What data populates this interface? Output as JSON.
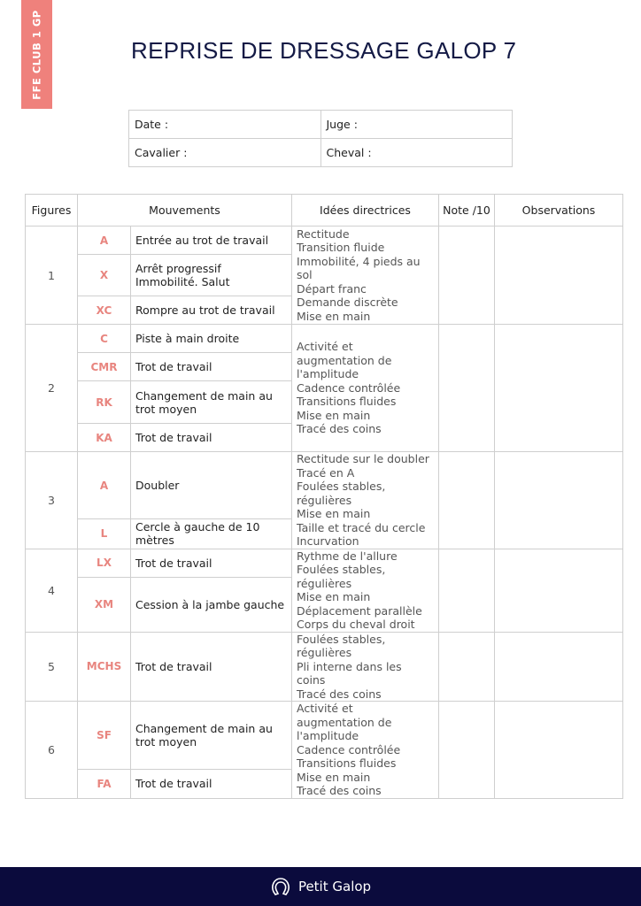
{
  "badge": "FFE CLUB 1 GP",
  "title": "REPRISE DE DRESSAGE GALOP 7",
  "info": {
    "date": "Date :",
    "juge": "Juge :",
    "cavalier": "Cavalier :",
    "cheval": "Cheval :"
  },
  "headers": [
    "Figures",
    "Mouvements",
    "Idées directrices",
    "Note /10",
    "Observations"
  ],
  "figures": [
    {
      "num": "1",
      "moves": [
        {
          "code": "A",
          "text": "Entrée au trot de travail"
        },
        {
          "code": "X",
          "text": "Arrêt progressif Immobilité. Salut"
        },
        {
          "code": "XC",
          "text": "Rompre au trot de travail"
        }
      ],
      "ideas": [
        "Rectitude",
        "Transition fluide",
        "Immobilité, 4 pieds au sol",
        "Départ franc",
        "Demande discrète",
        "Mise en main"
      ]
    },
    {
      "num": "2",
      "moves": [
        {
          "code": "C",
          "text": "Piste à main droite"
        },
        {
          "code": "CMR",
          "text": "Trot de travail"
        },
        {
          "code": "RK",
          "text": "Changement de main au trot moyen"
        },
        {
          "code": "KA",
          "text": "Trot de travail"
        }
      ],
      "ideas": [
        "Activité et augmentation de l'amplitude",
        "Cadence contrôlée",
        "Transitions fluides",
        "Mise en main",
        "Tracé des coins"
      ]
    },
    {
      "num": "3",
      "moves": [
        {
          "code": "A",
          "text": "Doubler"
        },
        {
          "code": "L",
          "text": "Cercle à gauche de 10 mètres"
        }
      ],
      "ideas": [
        "Rectitude sur le doubler",
        "Tracé en A",
        "Foulées stables, régulières",
        "Mise en main",
        "Taille et tracé du cercle",
        "Incurvation"
      ]
    },
    {
      "num": "4",
      "moves": [
        {
          "code": "LX",
          "text": "Trot de travail"
        },
        {
          "code": "XM",
          "text": "Cession à la jambe gauche"
        }
      ],
      "ideas": [
        "Rythme de l'allure",
        "Foulées stables, régulières",
        "Mise en main",
        "Déplacement parallèle",
        "Corps du cheval droit"
      ]
    },
    {
      "num": "5",
      "moves": [
        {
          "code": "MCHS",
          "text": "Trot de travail"
        }
      ],
      "ideas": [
        "Foulées stables, régulières",
        "Pli interne dans les coins",
        "Tracé des coins"
      ]
    },
    {
      "num": "6",
      "moves": [
        {
          "code": "SF",
          "text": "Changement de main au trot moyen"
        },
        {
          "code": "FA",
          "text": "Trot de travail"
        }
      ],
      "ideas": [
        "Activité et augmentation de l'amplitude",
        "Cadence contrôlée",
        "Transitions fluides",
        "Mise en main",
        "Tracé des coins"
      ]
    }
  ],
  "footer": {
    "brand": "Petit Galop",
    "icon": "horseshoe-icon"
  },
  "colors": {
    "accent": "#ef817c",
    "navy": "#0b0b3d"
  }
}
